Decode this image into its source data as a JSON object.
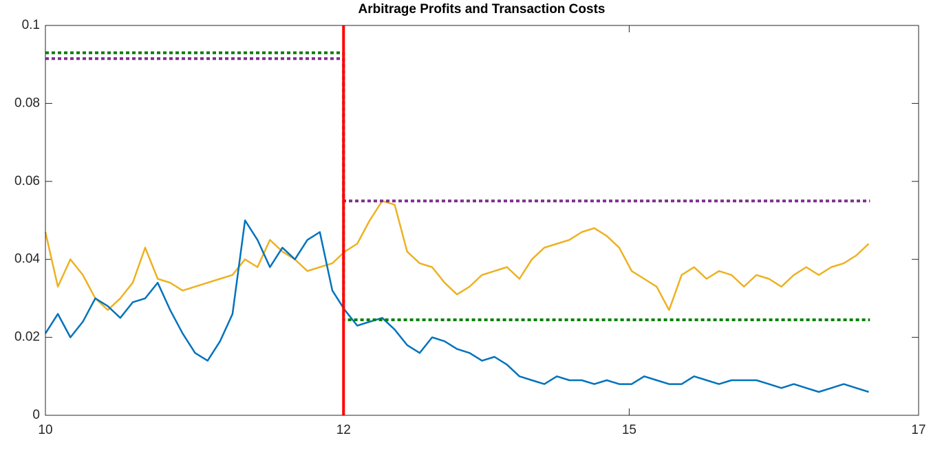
{
  "chart_data": {
    "type": "line",
    "title": "Arbitrage Profits and Transaction Costs",
    "xlim": [
      10,
      17
    ],
    "xticks": [
      10,
      {
        "value": 12.39,
        "label": "12"
      },
      {
        "value": 14.68,
        "label": "15"
      },
      17
    ],
    "ylim": [
      0,
      0.1
    ],
    "yticks": [
      0,
      0.02,
      0.04,
      0.06,
      0.08,
      0.1
    ],
    "x": [
      10.0,
      10.1,
      10.2,
      10.3,
      10.4,
      10.5,
      10.6,
      10.7,
      10.8,
      10.9,
      11.0,
      11.1,
      11.2,
      11.3,
      11.4,
      11.5,
      11.6,
      11.7,
      11.8,
      11.9,
      12.0,
      12.1,
      12.2,
      12.3,
      12.4,
      12.5,
      12.6,
      12.7,
      12.8,
      12.9,
      13.0,
      13.1,
      13.2,
      13.3,
      13.4,
      13.5,
      13.6,
      13.7,
      13.8,
      13.9,
      14.0,
      14.1,
      14.2,
      14.3,
      14.4,
      14.5,
      14.6,
      14.7,
      14.8,
      14.9,
      15.0,
      15.1,
      15.2,
      15.3,
      15.4,
      15.5,
      15.6,
      15.7,
      15.8,
      15.9,
      16.0,
      16.1,
      16.2,
      16.3,
      16.4,
      16.5,
      16.6
    ],
    "series": [
      {
        "color": "#edb120",
        "width": 2.5,
        "values": [
          0.047,
          0.033,
          0.04,
          0.036,
          0.03,
          0.027,
          0.03,
          0.034,
          0.043,
          0.035,
          0.034,
          0.032,
          0.033,
          0.034,
          0.035,
          0.036,
          0.04,
          0.038,
          0.045,
          0.042,
          0.04,
          0.037,
          0.038,
          0.039,
          0.042,
          0.044,
          0.05,
          0.055,
          0.054,
          0.042,
          0.039,
          0.038,
          0.034,
          0.031,
          0.033,
          0.036,
          0.037,
          0.038,
          0.035,
          0.04,
          0.043,
          0.044,
          0.045,
          0.047,
          0.048,
          0.046,
          0.043,
          0.037,
          0.035,
          0.033,
          0.027,
          0.036,
          0.038,
          0.035,
          0.037,
          0.036,
          0.033,
          0.036,
          0.035,
          0.033,
          0.036,
          0.038,
          0.036,
          0.038,
          0.039,
          0.041,
          0.044
        ]
      },
      {
        "color": "#0072bd",
        "width": 2.5,
        "values": [
          0.021,
          0.026,
          0.02,
          0.024,
          0.03,
          0.028,
          0.025,
          0.029,
          0.03,
          0.034,
          0.027,
          0.021,
          0.016,
          0.014,
          0.019,
          0.026,
          0.05,
          0.045,
          0.038,
          0.043,
          0.04,
          0.045,
          0.047,
          0.032,
          0.027,
          0.023,
          0.024,
          0.025,
          0.022,
          0.018,
          0.016,
          0.02,
          0.019,
          0.017,
          0.016,
          0.014,
          0.015,
          0.013,
          0.01,
          0.009,
          0.008,
          0.01,
          0.009,
          0.009,
          0.008,
          0.009,
          0.008,
          0.008,
          0.01,
          0.009,
          0.008,
          0.008,
          0.01,
          0.009,
          0.008,
          0.009,
          0.009,
          0.009,
          0.008,
          0.007,
          0.008,
          0.007,
          0.006,
          0.007,
          0.008,
          0.007,
          0.006
        ]
      },
      {
        "color": "#008000",
        "width": 4,
        "dash": "5,4",
        "x": [
          10,
          12.39,
          12.39,
          16.61
        ],
        "values": [
          0.093,
          0.093,
          0.0245,
          0.0245
        ]
      },
      {
        "color": "#7e2f8e",
        "width": 4,
        "dash": "5,4",
        "x": [
          10,
          12.39,
          12.39,
          16.61
        ],
        "values": [
          0.0915,
          0.0915,
          0.055,
          0.055
        ]
      }
    ],
    "vlines": [
      {
        "x": 12.39,
        "color": "#ff0000"
      }
    ]
  }
}
